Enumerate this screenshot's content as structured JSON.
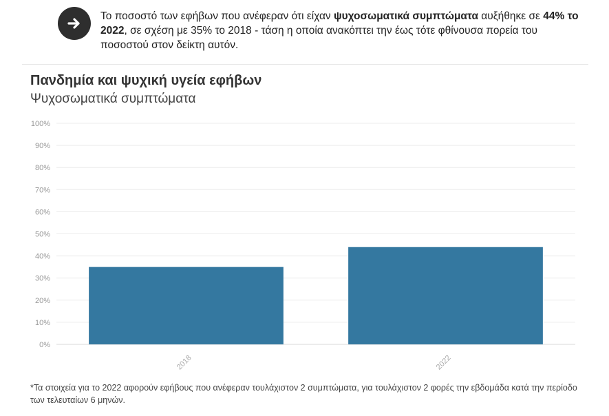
{
  "callout": {
    "icon": "arrow-right-icon",
    "text_1": "Το ποσοστό των εφήβων που ανέφεραν ότι είχαν ",
    "bold_1": "ψυχοσωματικά συμπτώματα",
    "text_2": " αυξήθηκε σε ",
    "bold_2": "44% το 2022",
    "text_3": ", σε σχέση με 35% το 2018 - τάση η οποία ανακόπτει την έως τότε φθίνουσα πορεία του ποσοστού στον δείκτη αυτόν."
  },
  "chart_data": {
    "type": "bar",
    "title": "Πανδημία και ψυχική υγεία εφήβων",
    "subtitle": "Ψυχοσωματικά συμπτώματα",
    "categories": [
      "2018",
      "2022"
    ],
    "values": [
      35,
      44
    ],
    "ylim": [
      0,
      100
    ],
    "yticks": [
      0,
      10,
      20,
      30,
      40,
      50,
      60,
      70,
      80,
      90,
      100
    ],
    "ytick_suffix": "%",
    "grid": true,
    "bar_color": "#3478a0"
  },
  "footnote": "*Τα στοιχεία για το 2022 αφορούν εφήβους που ανέφεραν τουλάχιστον 2 συμπτώματα, για τουλάχιστον 2 φορές την εβδομάδα κατά την περίοδο των τελευταίων 6 μηνών."
}
